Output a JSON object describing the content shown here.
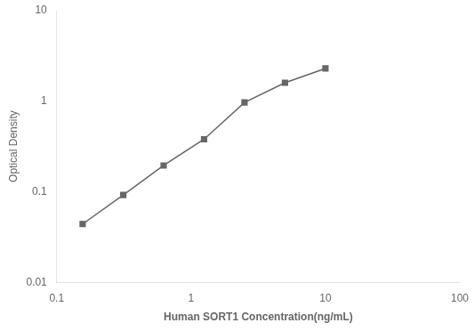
{
  "chart_data": {
    "type": "line",
    "x": [
      0.156,
      0.313,
      0.625,
      1.25,
      2.5,
      5.0,
      10.0
    ],
    "values": [
      0.044,
      0.092,
      0.195,
      0.38,
      0.97,
      1.6,
      2.3
    ],
    "xlabel": "Human SORT1 Concentration(ng/mL)",
    "ylabel": "Optical Density",
    "xlim": [
      0.1,
      100
    ],
    "ylim": [
      0.01,
      10
    ],
    "xticks": [
      0.1,
      1,
      10,
      100
    ],
    "yticks": [
      0.01,
      0.1,
      1,
      10
    ],
    "log": true,
    "grid": false,
    "color": "#666666",
    "marker": "square"
  }
}
